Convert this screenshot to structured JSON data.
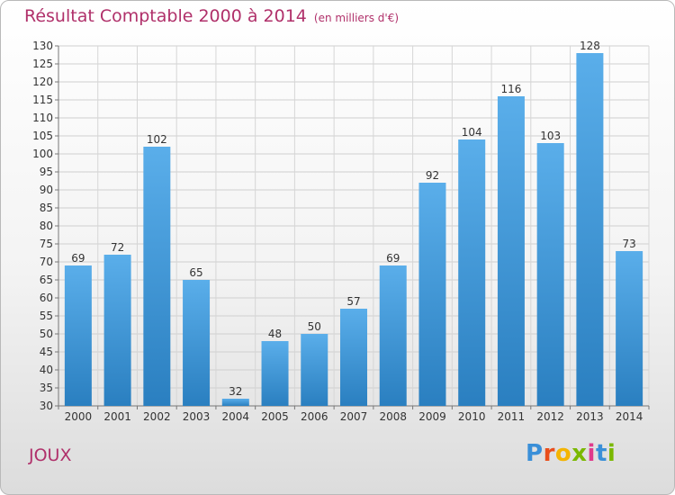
{
  "header": {
    "title": "Résultat Comptable 2000 à 2014",
    "unit": "(en milliers d'€)"
  },
  "footer": {
    "city": "JOUX",
    "logo_text": "Proxiti",
    "logo_colors": [
      "#3a8fd8",
      "#e94e1b",
      "#f4b400",
      "#7ab800",
      "#e03a8c",
      "#3a8fd8",
      "#7ab800"
    ]
  },
  "chart_data": {
    "type": "bar",
    "title": "Résultat Comptable 2000 à 2014",
    "subtitle": "(en milliers d'€)",
    "xlabel": "",
    "ylabel": "",
    "categories": [
      "2000",
      "2001",
      "2002",
      "2003",
      "2004",
      "2005",
      "2006",
      "2007",
      "2008",
      "2009",
      "2010",
      "2011",
      "2012",
      "2013",
      "2014"
    ],
    "values": [
      69,
      72,
      102,
      65,
      32,
      48,
      50,
      57,
      69,
      92,
      104,
      116,
      103,
      128,
      73
    ],
    "ylim": [
      30,
      130
    ],
    "ytick_step": 5,
    "grid": true,
    "bar_color_top": "#5aaeea",
    "bar_color_bottom": "#2a7fc0"
  }
}
